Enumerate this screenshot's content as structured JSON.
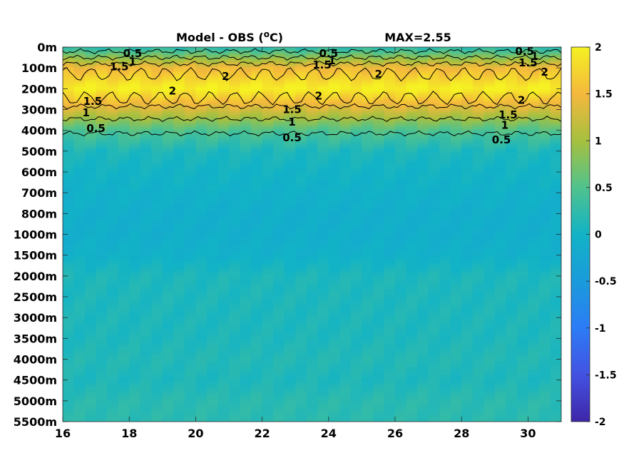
{
  "chart_data": {
    "type": "heatmap",
    "title": "Model - OBS (",
    "title_unit_sup": "o",
    "title_unit_rest": "C)",
    "max_label": "MAX=2.55",
    "xlabel": "",
    "ylabel": "",
    "x_ticks": [
      "16",
      "18",
      "20",
      "22",
      "24",
      "26",
      "28",
      "30"
    ],
    "x_tick_values": [
      16,
      18,
      20,
      22,
      24,
      26,
      28,
      30
    ],
    "xlim": [
      16,
      31
    ],
    "y_ticks": [
      "0m",
      "100m",
      "200m",
      "300m",
      "400m",
      "500m",
      "600m",
      "700m",
      "800m",
      "1000m",
      "1500m",
      "2000m",
      "2500m",
      "3000m",
      "3500m",
      "4000m",
      "4500m",
      "5000m",
      "5500m"
    ],
    "y_scale": "categorical (non-uniform depth levels, equally spaced)",
    "colorbar": {
      "ticks": [
        "2",
        "1.5",
        "1",
        "0.5",
        "0",
        "-0.5",
        "-1",
        "-1.5",
        "-2"
      ],
      "tick_values": [
        2,
        1.5,
        1,
        0.5,
        0,
        -0.5,
        -1,
        -1.5,
        -2
      ],
      "range": [
        -2,
        2
      ],
      "colormap": "parula"
    },
    "depth_profile": [
      {
        "depth": "0m",
        "value": 0.2
      },
      {
        "depth": "100m",
        "value": 1.5
      },
      {
        "depth": "200m",
        "value": 2.0
      },
      {
        "depth": "300m",
        "value": 1.3
      },
      {
        "depth": "400m",
        "value": 0.5
      },
      {
        "depth": "500m",
        "value": 0.1
      },
      {
        "depth": "600m",
        "value": 0.0
      },
      {
        "depth": "700m",
        "value": -0.05
      },
      {
        "depth": "800m",
        "value": -0.1
      },
      {
        "depth": "1000m",
        "value": -0.1
      },
      {
        "depth": "1500m",
        "value": -0.05
      },
      {
        "depth": "2000m",
        "value": 0.1
      },
      {
        "depth": "2500m",
        "value": 0.1
      },
      {
        "depth": "3000m",
        "value": 0.1
      },
      {
        "depth": "3500m",
        "value": 0.1
      },
      {
        "depth": "4000m",
        "value": 0.15
      },
      {
        "depth": "4500m",
        "value": 0.1
      },
      {
        "depth": "5000m",
        "value": 0.2
      },
      {
        "depth": "5500m",
        "value": 0.2
      }
    ],
    "contour_labels": [
      {
        "text": "0.5",
        "x": 18.1,
        "depth_index": 0.3
      },
      {
        "text": "1",
        "x": 18.1,
        "depth_index": 0.7
      },
      {
        "text": "1.5",
        "x": 17.7,
        "depth_index": 0.95
      },
      {
        "text": "2",
        "x": 20.9,
        "depth_index": 1.4
      },
      {
        "text": "2",
        "x": 19.3,
        "depth_index": 2.1
      },
      {
        "text": "1.5",
        "x": 16.9,
        "depth_index": 2.6
      },
      {
        "text": "1",
        "x": 16.7,
        "depth_index": 3.15
      },
      {
        "text": "0.5",
        "x": 17.0,
        "depth_index": 3.9
      },
      {
        "text": "0.5",
        "x": 24.0,
        "depth_index": 0.3
      },
      {
        "text": "1",
        "x": 24.1,
        "depth_index": 0.65
      },
      {
        "text": "1.5",
        "x": 23.8,
        "depth_index": 0.85
      },
      {
        "text": "2",
        "x": 25.5,
        "depth_index": 1.3
      },
      {
        "text": "2",
        "x": 23.7,
        "depth_index": 2.35
      },
      {
        "text": "1.5",
        "x": 22.9,
        "depth_index": 3.0
      },
      {
        "text": "1",
        "x": 22.9,
        "depth_index": 3.6
      },
      {
        "text": "0.5",
        "x": 22.9,
        "depth_index": 4.35
      },
      {
        "text": "0.5",
        "x": 29.9,
        "depth_index": 0.2
      },
      {
        "text": "1",
        "x": 30.2,
        "depth_index": 0.45
      },
      {
        "text": "1.5",
        "x": 30.0,
        "depth_index": 0.75
      },
      {
        "text": "2",
        "x": 30.5,
        "depth_index": 1.2
      },
      {
        "text": "2",
        "x": 29.8,
        "depth_index": 2.55
      },
      {
        "text": "1.5",
        "x": 29.4,
        "depth_index": 3.25
      },
      {
        "text": "1",
        "x": 29.3,
        "depth_index": 3.75
      },
      {
        "text": "0.5",
        "x": 29.2,
        "depth_index": 4.45
      }
    ],
    "contour_levels": [
      {
        "level": 0.5,
        "depth_index": 0.2
      },
      {
        "level": 1,
        "depth_index": 0.5
      },
      {
        "level": 1.5,
        "depth_index": 0.8
      },
      {
        "level": 2,
        "depth_index": 1.3
      },
      {
        "level": 2,
        "depth_index": 2.45
      },
      {
        "level": 1.5,
        "depth_index": 2.85
      },
      {
        "level": 1,
        "depth_index": 3.45
      },
      {
        "level": 0.5,
        "depth_index": 4.15
      }
    ]
  }
}
